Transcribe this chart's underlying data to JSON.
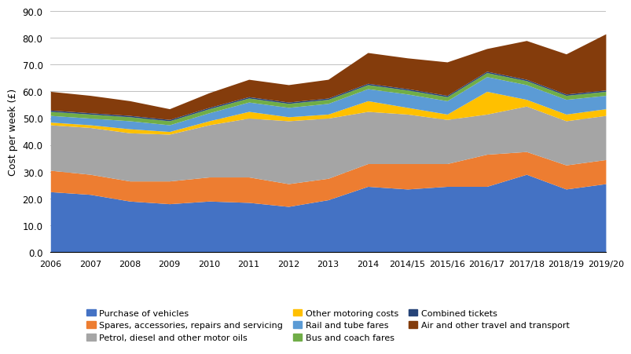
{
  "x_labels": [
    "2006",
    "2007",
    "2008",
    "2009",
    "2010",
    "2011",
    "2012",
    "2013",
    "2014",
    "2014/15",
    "2015/16",
    "2016/17",
    "2017/18",
    "2018/19",
    "2019/20"
  ],
  "series": {
    "Purchase of vehicles": [
      22.5,
      21.5,
      19.0,
      18.0,
      19.0,
      18.5,
      17.0,
      19.5,
      24.5,
      23.5,
      24.5,
      24.5,
      29.0,
      23.5,
      25.5
    ],
    "Spares, accessories, repairs and servicing": [
      8.0,
      7.5,
      7.5,
      8.5,
      9.0,
      9.5,
      8.5,
      8.0,
      8.5,
      9.5,
      8.5,
      12.0,
      8.5,
      9.0,
      9.0
    ],
    "Petrol, diesel and other motor oils": [
      17.0,
      17.5,
      18.0,
      17.5,
      19.5,
      22.0,
      23.5,
      22.5,
      19.5,
      18.5,
      16.5,
      15.0,
      17.0,
      16.5,
      16.5
    ],
    "Other motoring costs": [
      1.0,
      1.0,
      1.5,
      1.0,
      1.5,
      2.5,
      1.5,
      1.5,
      4.0,
      2.5,
      2.0,
      8.5,
      2.5,
      2.5,
      2.5
    ],
    "Rail and tube fares": [
      2.5,
      2.5,
      3.0,
      2.5,
      3.0,
      3.5,
      3.5,
      4.0,
      4.5,
      5.0,
      5.0,
      5.5,
      5.5,
      5.5,
      5.0
    ],
    "Bus and coach fares": [
      1.5,
      1.5,
      1.5,
      1.5,
      1.5,
      1.5,
      1.5,
      1.5,
      1.5,
      1.5,
      1.5,
      1.5,
      1.5,
      1.5,
      1.5
    ],
    "Combined tickets": [
      0.5,
      0.5,
      0.5,
      0.5,
      0.5,
      0.5,
      0.5,
      0.5,
      0.5,
      0.5,
      0.5,
      0.5,
      0.5,
      0.5,
      0.5
    ],
    "Air and other travel and transport": [
      7.0,
      6.5,
      5.5,
      4.0,
      5.5,
      6.5,
      6.5,
      7.0,
      11.5,
      11.5,
      12.5,
      8.5,
      14.5,
      15.0,
      21.0
    ]
  },
  "colors": {
    "Purchase of vehicles": "#4472C4",
    "Spares, accessories, repairs and servicing": "#ED7D31",
    "Petrol, diesel and other motor oils": "#A5A5A5",
    "Other motoring costs": "#FFC000",
    "Rail and tube fares": "#5B9BD5",
    "Bus and coach fares": "#70AD47",
    "Combined tickets": "#264478",
    "Air and other travel and transport": "#843C0C"
  },
  "legend_order": [
    "Purchase of vehicles",
    "Spares, accessories, repairs and servicing",
    "Petrol, diesel and other motor oils",
    "Other motoring costs",
    "Rail and tube fares",
    "Bus and coach fares",
    "Combined tickets",
    "Air and other travel and transport"
  ],
  "ylabel": "Cost per week (£)",
  "ylim": [
    0,
    90
  ],
  "yticks": [
    0.0,
    10.0,
    20.0,
    30.0,
    40.0,
    50.0,
    60.0,
    70.0,
    80.0,
    90.0
  ],
  "background_color": "#FFFFFF",
  "grid_color": "#C0C0C0"
}
